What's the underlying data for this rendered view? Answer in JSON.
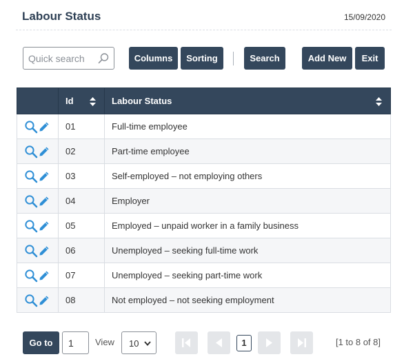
{
  "header": {
    "title": "Labour Status",
    "date": "15/09/2020"
  },
  "toolbar": {
    "search_placeholder": "Quick search",
    "search_icon": "magnifier-icon",
    "columns_label": "Columns",
    "sorting_label": "Sorting",
    "search_label": "Search",
    "add_new_label": "Add New",
    "exit_label": "Exit"
  },
  "table": {
    "columns": [
      "",
      "Id",
      "Labour Status"
    ],
    "rows": [
      {
        "id": "01",
        "status": "Full-time employee"
      },
      {
        "id": "02",
        "status": "Part-time employee"
      },
      {
        "id": "03",
        "status": "Self-employed – not employing others"
      },
      {
        "id": "04",
        "status": "Employer"
      },
      {
        "id": "05",
        "status": "Employed – unpaid worker in a family business"
      },
      {
        "id": "06",
        "status": "Unemployed – seeking full-time work"
      },
      {
        "id": "07",
        "status": "Unemployed – seeking part-time work"
      },
      {
        "id": "08",
        "status": "Not employed – not seeking employment"
      }
    ],
    "action_icons": [
      "magnifier-icon",
      "pencil-icon"
    ]
  },
  "pager": {
    "goto_label": "Go to",
    "goto_value": "1",
    "view_label": "View",
    "view_value": "10",
    "current_page": "1",
    "info": "[1 to 8 of 8]"
  },
  "colors": {
    "primary": "#34475c",
    "icon_blue": "#2f8fd6",
    "disabled": "#e4e6e9"
  }
}
